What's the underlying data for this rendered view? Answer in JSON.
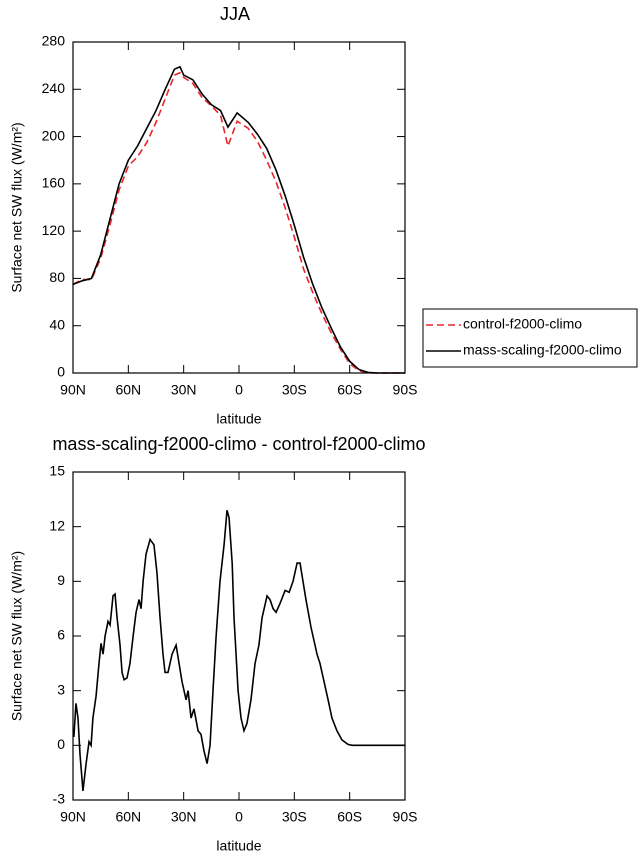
{
  "chart_data": [
    {
      "type": "line",
      "title": "JJA",
      "xlabel": "latitude",
      "ylabel": "Surface net SW flux (W/m²)",
      "x": [
        90,
        85,
        80,
        75,
        70,
        65,
        60,
        55,
        50,
        45,
        40,
        35,
        32,
        30,
        25,
        20,
        15,
        10,
        6,
        1,
        -5,
        -10,
        -15,
        -20,
        -25,
        -30,
        -35,
        -40,
        -45,
        -50,
        -55,
        -60,
        -65,
        -70,
        -75,
        -80,
        -85,
        -90
      ],
      "series": [
        {
          "name": "control-f2000-climo",
          "color": "#e8262a",
          "dashed": true,
          "values": [
            75,
            79,
            79,
            97,
            125,
            155,
            175,
            183,
            195,
            212,
            232,
            252,
            254,
            250,
            245,
            233,
            226,
            218,
            192,
            213,
            207,
            196,
            180,
            162,
            140,
            115,
            88,
            68,
            50,
            34,
            20,
            8,
            2,
            0,
            0,
            0,
            0,
            0
          ]
        },
        {
          "name": "mass-scaling-f2000-climo",
          "color": "#000000",
          "dashed": false,
          "values": [
            75,
            78,
            80,
            100,
            130,
            160,
            180,
            192,
            207,
            222,
            240,
            257,
            259,
            252,
            248,
            236,
            227,
            222,
            208,
            220,
            212,
            202,
            190,
            172,
            150,
            125,
            98,
            75,
            55,
            38,
            22,
            10,
            3,
            0.5,
            0,
            0,
            0,
            0
          ]
        }
      ],
      "xlim": [
        90,
        -90
      ],
      "xticks": [
        {
          "value": 90,
          "label": "90N"
        },
        {
          "value": 60,
          "label": "60N"
        },
        {
          "value": 30,
          "label": "30N"
        },
        0,
        {
          "value": -30,
          "label": "30S"
        },
        {
          "value": -60,
          "label": "60S"
        },
        {
          "value": -90,
          "label": "90S"
        }
      ],
      "ylim": [
        0,
        280
      ],
      "yticks": [
        0,
        40,
        80,
        120,
        160,
        200,
        240,
        280
      ],
      "legend": "outside-right"
    },
    {
      "type": "line",
      "title": "mass-scaling-f2000-climo - control-f2000-climo",
      "xlabel": "latitude",
      "ylabel": "Surface net SW flux (W/m²)",
      "x": [
        90,
        89.5,
        88.4,
        87.3,
        86.2,
        84.6,
        82.9,
        81.3,
        80.2,
        79.2,
        77.5,
        75.9,
        74.8,
        73.7,
        72.6,
        71.0,
        69.9,
        68.3,
        67.2,
        66.1,
        64.5,
        63.4,
        62.3,
        60.7,
        59.1,
        57.4,
        55.8,
        54.2,
        53.1,
        52.0,
        50.4,
        48.2,
        46.1,
        44.5,
        42.8,
        41.2,
        40.1,
        38.5,
        36.3,
        34.1,
        32.5,
        30.9,
        28.7,
        27.6,
        26.0,
        24.4,
        22.2,
        20.6,
        19.0,
        17.3,
        15.7,
        14.1,
        12.4,
        10.3,
        8.1,
        6.5,
        5.4,
        3.7,
        2.7,
        0.5,
        -1.1,
        -2.7,
        -4.3,
        -6.5,
        -8.7,
        -10.8,
        -12.5,
        -15.2,
        -16.8,
        -18.5,
        -20.1,
        -22.3,
        -25.0,
        -27.2,
        -29.3,
        -31.5,
        -33.1,
        -34.7,
        -36.3,
        -39.0,
        -40.1,
        -42.3,
        -43.9,
        -46.1,
        -48.3,
        -50.4,
        -53.1,
        -55.8,
        -59.1,
        -61.2,
        -90
      ],
      "color": "#000000",
      "values": [
        0.5,
        0.5,
        2.3,
        1.5,
        -0.5,
        -2.5,
        -1,
        0.2,
        0,
        1.5,
        2.7,
        4.5,
        5.6,
        5,
        6,
        6.8,
        6.6,
        8.2,
        8.3,
        7,
        5.5,
        4,
        3.6,
        3.7,
        4.5,
        6,
        7.3,
        8,
        7.5,
        9,
        10.5,
        11.3,
        11,
        9.5,
        7,
        5,
        4,
        4,
        5,
        5.5,
        4.5,
        3.5,
        2.5,
        3,
        1.5,
        2,
        0.8,
        0.6,
        -0.3,
        -1,
        0,
        3,
        6,
        9,
        11,
        12.9,
        12.5,
        10,
        7,
        3,
        1.5,
        0.8,
        1.2,
        2.5,
        4.5,
        5.5,
        7,
        8.2,
        8,
        7.5,
        7.3,
        7.8,
        8.5,
        8.4,
        9,
        10,
        10,
        9,
        8,
        6.5,
        6,
        5,
        4.5,
        3.5,
        2.5,
        1.5,
        0.8,
        0.3,
        0.05,
        0,
        0
      ],
      "xlim": [
        90,
        -90
      ],
      "xticks": [
        {
          "value": 90,
          "label": "90N"
        },
        {
          "value": 60,
          "label": "60N"
        },
        {
          "value": 30,
          "label": "30N"
        },
        0,
        {
          "value": -30,
          "label": "30S"
        },
        {
          "value": -60,
          "label": "60S"
        },
        {
          "value": -90,
          "label": "90S"
        }
      ],
      "ylim": [
        -3,
        15
      ],
      "yticks": [
        -3,
        0,
        3,
        6,
        9,
        12,
        15
      ]
    }
  ]
}
